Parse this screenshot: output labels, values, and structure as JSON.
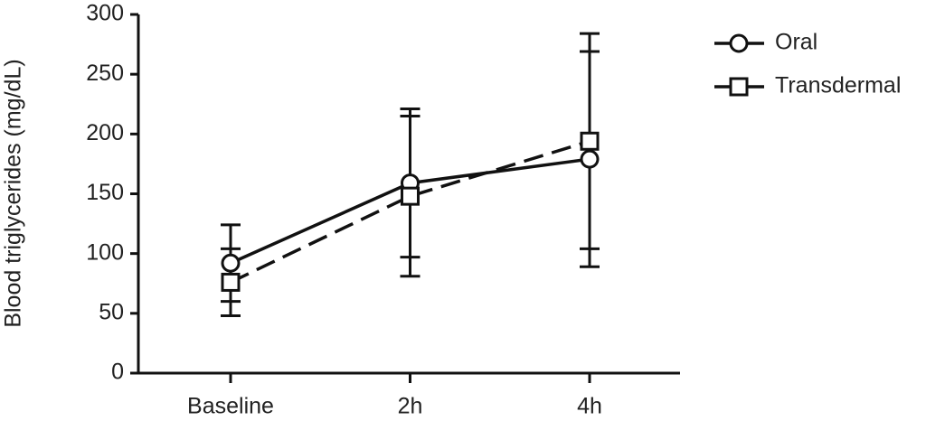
{
  "chart_data": {
    "type": "line",
    "y_label": "Blood triglycerides (mg/dL)",
    "categories": [
      "Baseline",
      "2h",
      "4h"
    ],
    "series": [
      {
        "name": "Oral",
        "color": "#111111",
        "marker": "circle",
        "line_style": "solid",
        "values": [
          92,
          159,
          179
        ],
        "errors": [
          32,
          62,
          90
        ]
      },
      {
        "name": "Transdermal",
        "color": "#111111",
        "marker": "square",
        "line_style": "dashed",
        "values": [
          76,
          148,
          194
        ],
        "errors": [
          28,
          67,
          90
        ]
      }
    ],
    "ylim": [
      0,
      300
    ],
    "yticks": [
      0,
      50,
      100,
      150,
      200,
      250,
      300
    ]
  }
}
